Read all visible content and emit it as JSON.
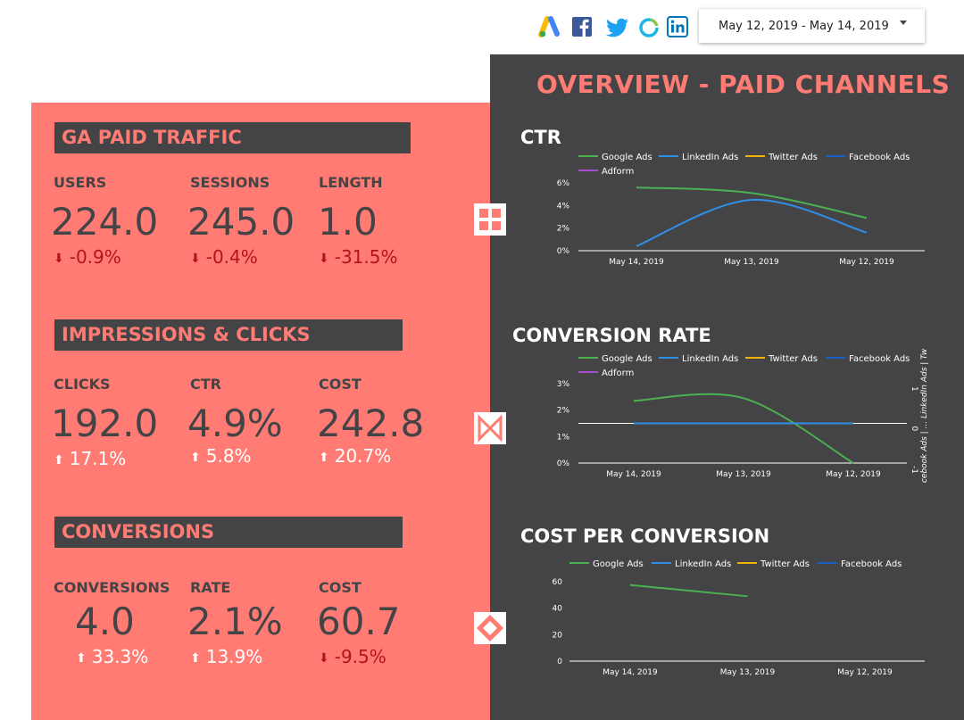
{
  "header": {
    "date_range": "May 12, 2019 - May 14, 2019",
    "social_icons": [
      "google-ads-icon",
      "facebook-icon",
      "twitter-icon",
      "adform-icon",
      "linkedin-icon"
    ]
  },
  "colors": {
    "accent": "#ff7b73",
    "dark": "#444447",
    "google_ads": "#4caf50",
    "linkedin_ads": "#2f8fe6",
    "twitter_ads": "#f0b400",
    "facebook_ads": "#1c5ec8",
    "adform": "#a44fd1"
  },
  "left": {
    "sections": [
      {
        "title": "GA PAID TRAFFIC",
        "metrics": [
          {
            "label": "USERS",
            "value": "224.0",
            "delta": "-0.9%",
            "direction": "down"
          },
          {
            "label": "SESSIONS",
            "value": "245.0",
            "delta": "-0.4%",
            "direction": "down"
          },
          {
            "label": "LENGTH",
            "value": "1.0",
            "delta": "-31.5%",
            "direction": "down"
          }
        ]
      },
      {
        "title": "IMPRESSIONS & CLICKS",
        "metrics": [
          {
            "label": "CLICKS",
            "value": "192.0",
            "delta": "17.1%",
            "direction": "up"
          },
          {
            "label": "CTR",
            "value": "4.9%",
            "delta": "5.8%",
            "direction": "up"
          },
          {
            "label": "COST",
            "value": "242.8",
            "delta": "20.7%",
            "direction": "up"
          }
        ]
      },
      {
        "title": "CONVERSIONS",
        "metrics": [
          {
            "label": "CONVERSIONS",
            "value": "4.0",
            "delta": "33.3%",
            "direction": "up"
          },
          {
            "label": "RATE",
            "value": "2.1%",
            "delta": "13.9%",
            "direction": "up"
          },
          {
            "label": "COST",
            "value": "60.7",
            "delta": "-9.5%",
            "direction": "down"
          }
        ]
      }
    ]
  },
  "right": {
    "title": "OVERVIEW - PAID CHANNELS"
  },
  "chart_data": [
    {
      "type": "line",
      "title": "CTR",
      "legend": [
        "Google Ads",
        "LinkedIn Ads",
        "Twitter Ads",
        "Facebook Ads",
        "Adform"
      ],
      "categories": [
        "May 14, 2019",
        "May 13, 2019",
        "May 12, 2019"
      ],
      "y_ticks": [
        "0%",
        "2%",
        "4%",
        "6%"
      ],
      "ylim": [
        0,
        6
      ],
      "series": [
        {
          "name": "Google Ads",
          "values": [
            5.6,
            5.1,
            2.9
          ]
        },
        {
          "name": "LinkedIn Ads",
          "values": [
            0.4,
            4.5,
            1.6
          ]
        }
      ]
    },
    {
      "type": "line",
      "title": "CONVERSION RATE",
      "legend": [
        "Google Ads",
        "LinkedIn Ads",
        "Twitter Ads",
        "Facebook Ads",
        "Adform"
      ],
      "categories": [
        "May 14, 2019",
        "May 13, 2019",
        "May 12, 2019"
      ],
      "y_ticks": [
        "0%",
        "1%",
        "2%",
        "3%"
      ],
      "ylim": [
        0,
        3
      ],
      "right_axis_label": "Ads | Facebook Ads | ... LinkedIn Ads | Twitter",
      "right_ticks": [
        "-1",
        "0",
        "1"
      ],
      "right_ylim": [
        -1,
        1
      ],
      "series": [
        {
          "name": "Google Ads",
          "values": [
            2.35,
            2.45,
            0
          ]
        },
        {
          "name": "LinkedIn Ads",
          "axis": "right",
          "values": [
            0,
            0,
            0
          ]
        }
      ]
    },
    {
      "type": "line",
      "title": "COST PER CONVERSION",
      "legend": [
        "Google Ads",
        "LinkedIn Ads",
        "Twitter Ads",
        "Facebook Ads"
      ],
      "categories": [
        "May 14, 2019",
        "May 13, 2019",
        "May 12, 2019"
      ],
      "y_ticks": [
        "0",
        "20",
        "40",
        "60"
      ],
      "ylim": [
        0,
        60
      ],
      "series": [
        {
          "name": "Google Ads",
          "values": [
            57.5,
            49,
            null
          ]
        }
      ]
    }
  ]
}
